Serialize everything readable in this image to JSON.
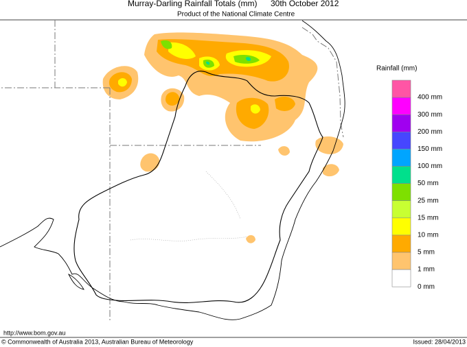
{
  "title": "Murray-Darling Rainfall Totals (mm)",
  "date": "30th October 2012",
  "subtitle": "Product of the National Climate Centre",
  "legend": {
    "title": "Rainfall (mm)",
    "items": [
      {
        "label": "400 mm",
        "color": "#ff55a5"
      },
      {
        "label": "300 mm",
        "color": "#ff00ff"
      },
      {
        "label": "200 mm",
        "color": "#a000f0"
      },
      {
        "label": "150 mm",
        "color": "#4646ff"
      },
      {
        "label": "100 mm",
        "color": "#00a5ff"
      },
      {
        "label": "50 mm",
        "color": "#00e08c"
      },
      {
        "label": "25 mm",
        "color": "#7ee000"
      },
      {
        "label": "15 mm",
        "color": "#c8ff32"
      },
      {
        "label": "10 mm",
        "color": "#ffff00"
      },
      {
        "label": "5 mm",
        "color": "#ffaa00"
      },
      {
        "label": "1 mm",
        "color": "#ffc46e"
      },
      {
        "label": "0 mm",
        "color": "#ffffff"
      }
    ]
  },
  "footer": {
    "url": "http://www.bom.gov.au",
    "copyright": "© Commonwealth of Australia 2013, Australian Bureau of Meteorology",
    "issued": "Issued: 28/04/2013"
  }
}
